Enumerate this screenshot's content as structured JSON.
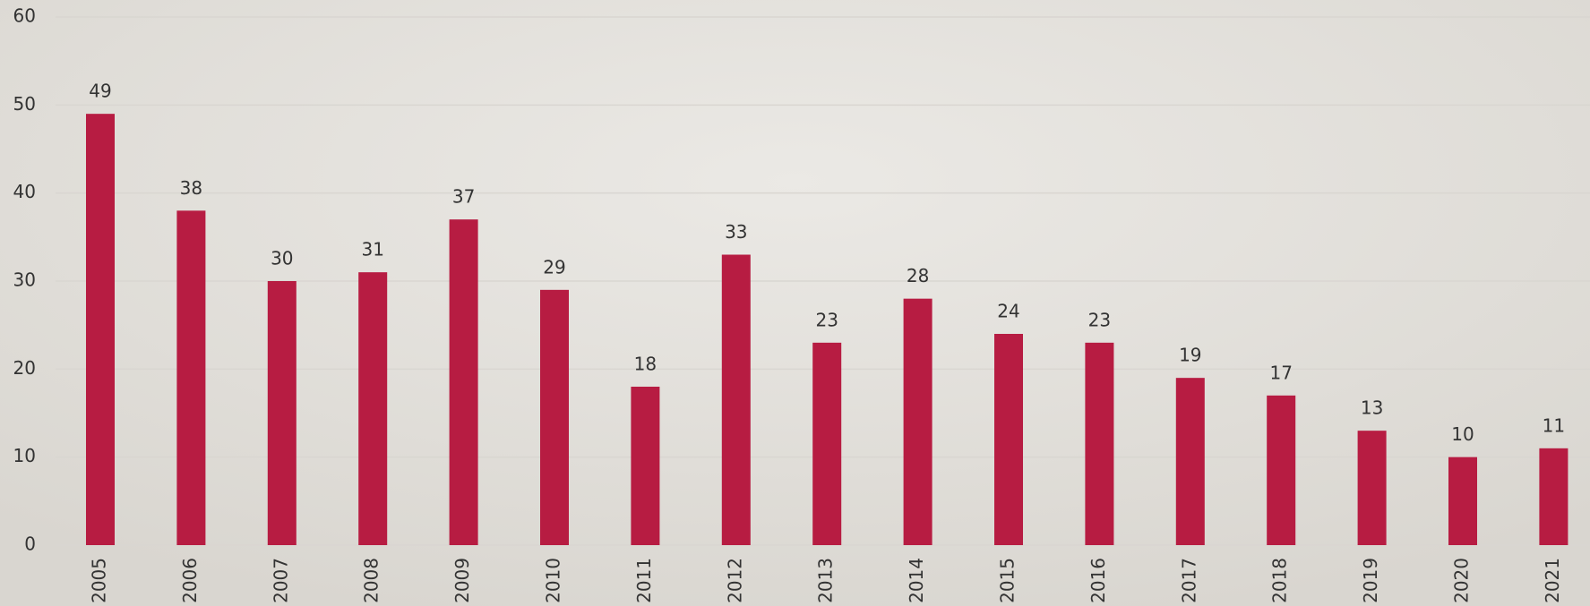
{
  "chart_data": {
    "type": "bar",
    "categories": [
      "2005",
      "2006",
      "2007",
      "2008",
      "2009",
      "2010",
      "2011",
      "2012",
      "2013",
      "2014",
      "2015",
      "2016",
      "2017",
      "2018",
      "2019",
      "2020",
      "2021"
    ],
    "values": [
      49,
      38,
      30,
      31,
      37,
      29,
      18,
      33,
      23,
      28,
      24,
      23,
      19,
      17,
      13,
      10,
      11
    ],
    "color": "#b71c42",
    "ylim": [
      0,
      60
    ],
    "yticks": [
      0,
      10,
      20,
      30,
      40,
      50,
      60
    ],
    "grid": true
  }
}
